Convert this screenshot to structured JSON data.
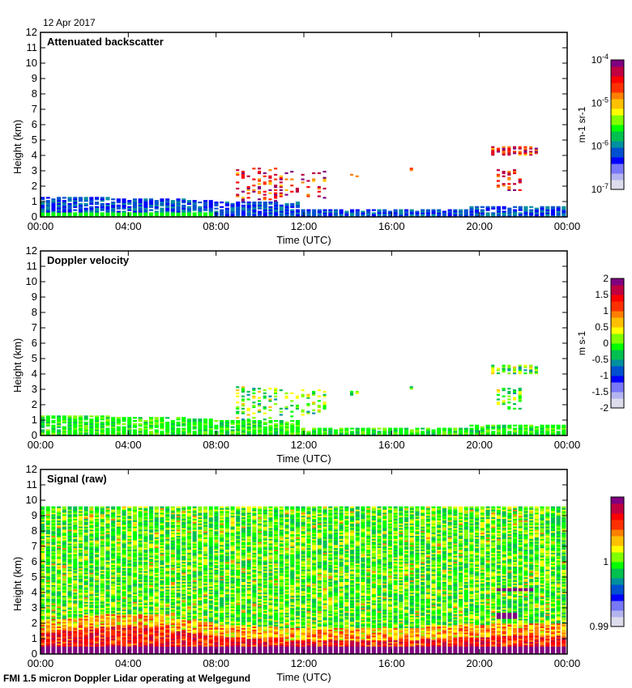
{
  "header": {
    "date": "12 Apr 2017"
  },
  "footer": {
    "caption": "FMI 1.5 micron Doppler Lidar operating at Welgegund"
  },
  "colors": {
    "palette": [
      "#dcdcec",
      "#b4b4f0",
      "#7878f8",
      "#0000ff",
      "#0050d0",
      "#0090a0",
      "#00c050",
      "#00ff00",
      "#80ff00",
      "#ffff00",
      "#ffc000",
      "#ff8000",
      "#ff3000",
      "#ff0000",
      "#c00040",
      "#800080"
    ]
  },
  "chart_data": [
    {
      "type": "heatmap",
      "title": "Attenuated backscatter",
      "xlabel": "Time (UTC)",
      "ylabel": "Height (km)",
      "x_ticks": [
        "00:00",
        "04:00",
        "08:00",
        "12:00",
        "16:00",
        "20:00",
        "00:00"
      ],
      "x_range_hours": [
        0,
        24
      ],
      "y_ticks": [
        "0",
        "1",
        "2",
        "3",
        "4",
        "5",
        "6",
        "7",
        "8",
        "9",
        "10",
        "11",
        "12"
      ],
      "ylim": [
        0,
        12
      ],
      "colorbar": {
        "label": "m-1 sr-1",
        "ticks": [
          "10-7",
          "10-6",
          "10-5",
          "10-4"
        ],
        "scale": "log",
        "range": [
          1e-07,
          0.0001
        ]
      },
      "features": [
        {
          "desc": "boundary layer aerosol",
          "t_start": 0,
          "t_end": 24,
          "h_top": 1.3
        },
        {
          "desc": "cloud fragments",
          "t_start": 9,
          "t_end": 13,
          "h_range": [
            1.0,
            3.2
          ]
        },
        {
          "desc": "cloud",
          "t_start": 14.2,
          "t_end": 14.6,
          "h_range": [
            2.6,
            2.9
          ]
        },
        {
          "desc": "cloud",
          "t_start": 16.8,
          "t_end": 17.0,
          "h_range": [
            3.0,
            3.2
          ]
        },
        {
          "desc": "cloud layer",
          "t_start": 20.5,
          "t_end": 22.7,
          "h_range": [
            4.0,
            4.5
          ]
        },
        {
          "desc": "cloud",
          "t_start": 20.8,
          "t_end": 22.0,
          "h_range": [
            1.7,
            3.1
          ]
        }
      ]
    },
    {
      "type": "heatmap",
      "title": "Doppler velocity",
      "xlabel": "Time (UTC)",
      "ylabel": "Height (km)",
      "x_ticks": [
        "00:00",
        "04:00",
        "08:00",
        "12:00",
        "16:00",
        "20:00",
        "00:00"
      ],
      "x_range_hours": [
        0,
        24
      ],
      "y_ticks": [
        "0",
        "1",
        "2",
        "3",
        "4",
        "5",
        "6",
        "7",
        "8",
        "9",
        "10",
        "11",
        "12"
      ],
      "ylim": [
        0,
        12
      ],
      "colorbar": {
        "label": "m s-1",
        "ticks": [
          "-2",
          "-1.5",
          "-1",
          "-0.5",
          "0",
          "0.5",
          "1",
          "1.5",
          "2"
        ],
        "scale": "linear",
        "range": [
          -2,
          2
        ]
      }
    },
    {
      "type": "heatmap",
      "title": "Signal (raw)",
      "xlabel": "Time (UTC)",
      "ylabel": "Height (km)",
      "x_ticks": [
        "00:00",
        "04:00",
        "08:00",
        "12:00",
        "16:00",
        "20:00",
        "00:00"
      ],
      "x_range_hours": [
        0,
        24
      ],
      "y_ticks": [
        "0",
        "1",
        "2",
        "3",
        "4",
        "5",
        "6",
        "7",
        "8",
        "9",
        "10",
        "11",
        "12"
      ],
      "ylim": [
        0,
        12
      ],
      "colorbar": {
        "label": "",
        "ticks": [
          "0.99",
          "1"
        ],
        "scale": "linear",
        "range": [
          0.99,
          1.01
        ]
      },
      "max_height_km": 9.5
    }
  ]
}
